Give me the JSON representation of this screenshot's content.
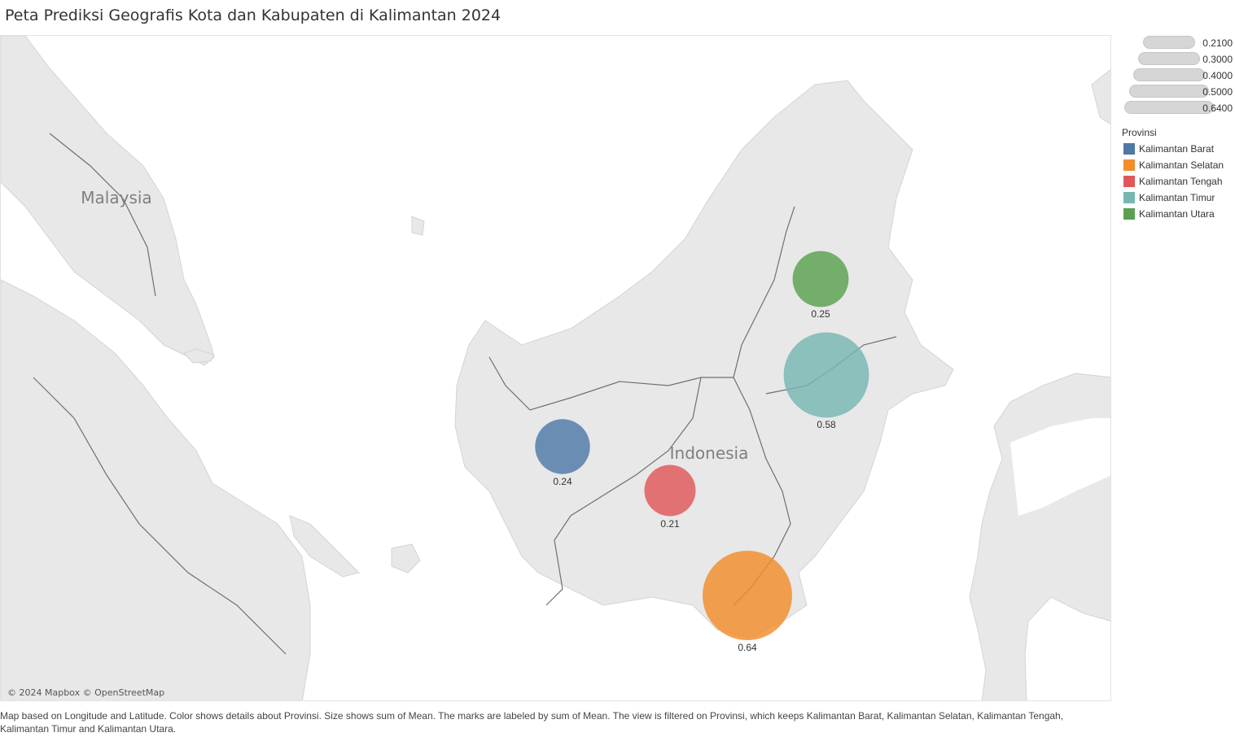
{
  "title": "Peta Prediksi Geografis Kota dan Kabupaten di Kalimantan 2024",
  "map": {
    "country_labels": [
      "Malaysia",
      "Indonesia"
    ],
    "attribution": "© 2024 Mapbox © OpenStreetMap",
    "land_color": "#e8e8e8",
    "water_color": "#ffffff",
    "border_color": "#707070"
  },
  "marks": [
    {
      "provinsi": "Kalimantan Barat",
      "value": 0.24,
      "label": "0.24",
      "color": "#4e79a7"
    },
    {
      "provinsi": "Kalimantan Tengah",
      "value": 0.21,
      "label": "0.21",
      "color": "#e15759"
    },
    {
      "provinsi": "Kalimantan Selatan",
      "value": 0.64,
      "label": "0.64",
      "color": "#f28e2b"
    },
    {
      "provinsi": "Kalimantan Timur",
      "value": 0.58,
      "label": "0.58",
      "color": "#76b7b2"
    },
    {
      "provinsi": "Kalimantan Utara",
      "value": 0.25,
      "label": "0.25",
      "color": "#59a14f"
    }
  ],
  "size_legend": {
    "values": [
      "0.2100",
      "0.3000",
      "0.4000",
      "0.5000",
      "0.6400"
    ]
  },
  "color_legend": {
    "title": "Provinsi",
    "items": [
      {
        "label": "Kalimantan Barat",
        "color": "#4e79a7"
      },
      {
        "label": "Kalimantan Selatan",
        "color": "#f28e2b"
      },
      {
        "label": "Kalimantan Tengah",
        "color": "#e15759"
      },
      {
        "label": "Kalimantan Timur",
        "color": "#76b7b2"
      },
      {
        "label": "Kalimantan Utara",
        "color": "#59a14f"
      }
    ]
  },
  "caption": "Map based on Longitude and Latitude.  Color shows details about Provinsi.  Size shows sum of Mean.  The marks are labeled by sum of Mean. The view is filtered on Provinsi, which keeps Kalimantan Barat, Kalimantan Selatan, Kalimantan Tengah, Kalimantan Timur and Kalimantan Utara."
}
